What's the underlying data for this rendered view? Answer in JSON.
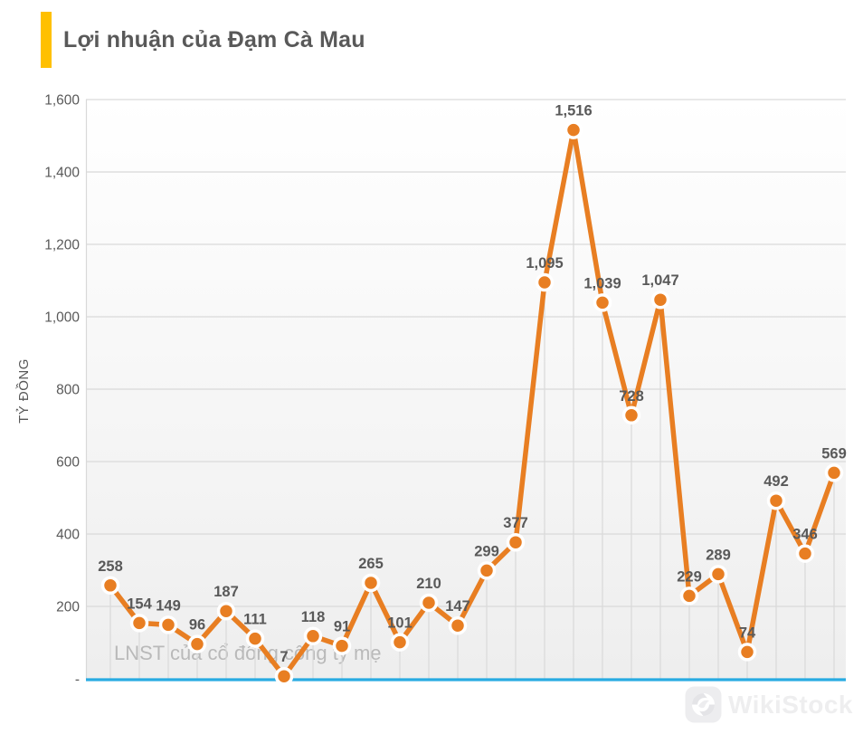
{
  "header": {
    "title": "Lợi nhuận của Đạm Cà Mau",
    "accent_color": "#FFC000"
  },
  "watermark": {
    "text": "WikiStock"
  },
  "chart_data": {
    "type": "line",
    "title": "Lợi nhuận của Đạm Cà Mau",
    "ylabel": "TỶ ĐỒNG",
    "ylim": [
      0,
      1600
    ],
    "grid": "horizontal",
    "legend_position": "bottom-left-overlay",
    "yticks": [
      {
        "value": 0,
        "label": "-"
      },
      {
        "value": 200,
        "label": "200"
      },
      {
        "value": 400,
        "label": "400"
      },
      {
        "value": 600,
        "label": "600"
      },
      {
        "value": 800,
        "label": "800"
      },
      {
        "value": 1000,
        "label": "1,000"
      },
      {
        "value": 1200,
        "label": "1,200"
      },
      {
        "value": 1400,
        "label": "1,400"
      },
      {
        "value": 1600,
        "label": "1,600"
      }
    ],
    "series": [
      {
        "name": "LNST của cổ đông công ty mẹ",
        "values": [
          258,
          154,
          149,
          96,
          187,
          111,
          7,
          118,
          91,
          265,
          101,
          210,
          147,
          299,
          377,
          1095,
          1516,
          1039,
          728,
          1047,
          229,
          289,
          74,
          492,
          346,
          569
        ],
        "labels": [
          "258",
          "154",
          "149",
          "96",
          "187",
          "111",
          "7",
          "118",
          "91",
          "265",
          "101",
          "210",
          "147",
          "299",
          "377",
          "1,095",
          "1,516",
          "1,039",
          "728",
          "1,047",
          "229",
          "289",
          "74",
          "492",
          "346",
          "569"
        ]
      }
    ],
    "colors": {
      "line": "#E87E22",
      "marker_fill": "#E87E22",
      "marker_ring": "#FFFFFF",
      "grid": "#D9D9D9",
      "drop_line": "#D9D9D9",
      "zero_axis": "#29ABE2",
      "data_label": "#595959",
      "tick_label": "#595959",
      "axis_title": "#595959",
      "legend_text": "#B9B9B9",
      "plot_bg_top": "#FFFFFF",
      "plot_bg_bottom": "#EEEEEE"
    }
  }
}
